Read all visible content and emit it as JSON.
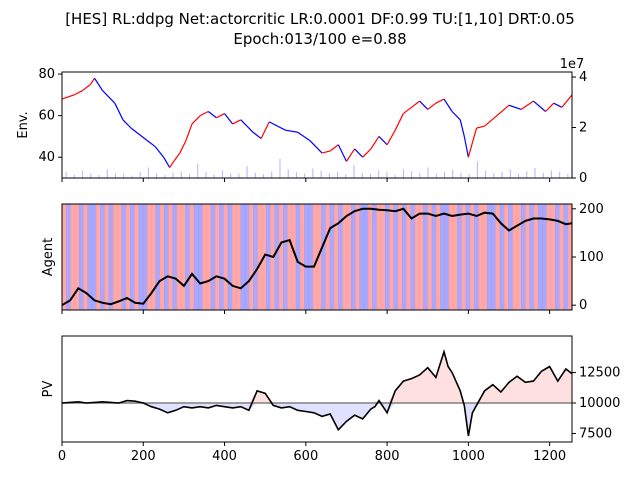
{
  "title_line1": "[HES] RL:ddpg Net:actorcritic LR:0.0001 DF:0.99 TU:[1,10] DRT:0.05",
  "title_line2": "Epoch:013/100 e=0.88",
  "colors": {
    "up": "#ff0000",
    "down": "#0000ff",
    "volume": "#8080ff",
    "agent_line": "#000000",
    "band_long": "#ff9999",
    "band_short": "#9999ff",
    "pv_line": "#000000",
    "baseline": "#808080",
    "pv_gain_fill": "#ffe0e0",
    "pv_loss_fill": "#e0e0ff"
  },
  "chart_data": [
    {
      "panel": "env",
      "type": "line",
      "ylabel": "Env.",
      "ylim": [
        30,
        81
      ],
      "yticks": [
        "40",
        "60",
        "80"
      ],
      "y2lim": [
        0,
        42000000
      ],
      "y2ticks": [
        "0",
        "2",
        "4"
      ],
      "y2_offset": "1e7",
      "series": [
        {
          "kind": "price",
          "x": [
            0,
            30,
            50,
            70,
            80,
            100,
            130,
            150,
            170,
            190,
            210,
            230,
            250,
            265,
            275,
            290,
            305,
            320,
            340,
            360,
            380,
            400,
            420,
            440,
            470,
            490,
            510,
            530,
            550,
            580,
            610,
            640,
            660,
            680,
            700,
            720,
            740,
            760,
            780,
            800,
            820,
            840,
            860,
            880,
            900,
            920,
            940,
            960,
            980,
            990,
            1000,
            1020,
            1040,
            1070,
            1100,
            1130,
            1160,
            1190,
            1210,
            1230,
            1255
          ],
          "values": [
            68,
            70,
            72,
            75,
            78,
            72,
            66,
            58,
            54,
            51,
            48,
            45,
            40,
            35,
            38,
            42,
            48,
            56,
            60,
            62,
            59,
            61,
            56,
            58,
            52,
            49,
            57,
            55,
            53,
            52,
            48,
            42,
            43,
            46,
            38,
            44,
            40,
            44,
            50,
            46,
            53,
            61,
            64,
            67,
            63,
            66,
            68,
            62,
            58,
            50,
            40,
            54,
            55,
            60,
            65,
            63,
            67,
            62,
            66,
            64,
            70
          ]
        },
        {
          "kind": "volume",
          "values": [
            12,
            7,
            15,
            9,
            6,
            18,
            10,
            8,
            5,
            13,
            22,
            9,
            6,
            11,
            14,
            8,
            30,
            12,
            7,
            16,
            10,
            9,
            25,
            11,
            8,
            14,
            40,
            18,
            12,
            9,
            20,
            15,
            10,
            13,
            8,
            27,
            11,
            9,
            16,
            12,
            7,
            19,
            14,
            10,
            22,
            9,
            13,
            17,
            11,
            8,
            35,
            15,
            10,
            12,
            18,
            9,
            14,
            21,
            11,
            16,
            13,
            9
          ]
        }
      ]
    },
    {
      "panel": "agent",
      "type": "line",
      "ylabel": "Agent",
      "ylim": [
        -10,
        210
      ],
      "yticks": [
        "0",
        "100",
        "200"
      ],
      "series": [
        {
          "kind": "position",
          "x": [
            0,
            20,
            40,
            60,
            80,
            100,
            120,
            140,
            160,
            180,
            200,
            220,
            240,
            260,
            280,
            300,
            320,
            340,
            360,
            380,
            400,
            420,
            440,
            460,
            480,
            500,
            520,
            540,
            560,
            580,
            600,
            620,
            640,
            660,
            680,
            700,
            720,
            740,
            760,
            780,
            800,
            820,
            840,
            860,
            880,
            900,
            920,
            940,
            960,
            980,
            1000,
            1020,
            1040,
            1060,
            1080,
            1100,
            1120,
            1140,
            1160,
            1180,
            1200,
            1220,
            1240,
            1255
          ],
          "values": [
            0,
            10,
            35,
            25,
            10,
            5,
            2,
            8,
            15,
            5,
            3,
            25,
            50,
            60,
            55,
            40,
            65,
            45,
            50,
            60,
            55,
            40,
            35,
            50,
            75,
            105,
            100,
            130,
            135,
            90,
            80,
            80,
            120,
            160,
            170,
            185,
            195,
            200,
            200,
            198,
            197,
            195,
            200,
            180,
            190,
            190,
            185,
            190,
            185,
            188,
            190,
            185,
            192,
            190,
            170,
            155,
            165,
            175,
            180,
            180,
            178,
            175,
            168,
            170
          ]
        },
        {
          "kind": "action_bands",
          "values": [
            1,
            0,
            1,
            1,
            0,
            1,
            0,
            0,
            1,
            0,
            1,
            0,
            1,
            1,
            0,
            1,
            0,
            1,
            0,
            0,
            1,
            1,
            0,
            1,
            0,
            1,
            0,
            1,
            1,
            0,
            1,
            0,
            0,
            1,
            1,
            0,
            1,
            0,
            1,
            0,
            1,
            1,
            0,
            0,
            1,
            0,
            1,
            1,
            0,
            1,
            0,
            1,
            0,
            1,
            1,
            0,
            1,
            0,
            0,
            1,
            1,
            0,
            1,
            0,
            1,
            0,
            1,
            1,
            0,
            1,
            0,
            0,
            1,
            0,
            1,
            1,
            0,
            1,
            0,
            1,
            0,
            1,
            0,
            1,
            1,
            0,
            1,
            0,
            1,
            0,
            0,
            1,
            1,
            0,
            1,
            0,
            1,
            0,
            1,
            1,
            0,
            0,
            1,
            0,
            1,
            0,
            1,
            1,
            0,
            1,
            0,
            1,
            0,
            0,
            1,
            1,
            0,
            1,
            0,
            1
          ]
        }
      ]
    },
    {
      "panel": "pv",
      "type": "area",
      "ylabel": "PV",
      "ylim": [
        6800,
        15500
      ],
      "yticks": [
        "7500",
        "10000",
        "12500"
      ],
      "baseline": 10000,
      "xlim": [
        0,
        1255
      ],
      "xticks": [
        "0",
        "200",
        "400",
        "600",
        "800",
        "1000",
        "1200"
      ],
      "series": [
        {
          "kind": "portfolio",
          "x": [
            0,
            20,
            40,
            60,
            80,
            100,
            120,
            140,
            160,
            180,
            200,
            220,
            240,
            260,
            280,
            300,
            320,
            340,
            360,
            380,
            400,
            420,
            440,
            460,
            480,
            500,
            520,
            540,
            560,
            580,
            600,
            620,
            640,
            660,
            680,
            700,
            720,
            740,
            760,
            770,
            780,
            800,
            820,
            840,
            860,
            880,
            900,
            920,
            940,
            950,
            960,
            980,
            990,
            1000,
            1010,
            1020,
            1040,
            1060,
            1080,
            1100,
            1120,
            1140,
            1160,
            1180,
            1200,
            1210,
            1220,
            1240,
            1255
          ],
          "values": [
            10000,
            10050,
            10100,
            10000,
            10050,
            10100,
            10050,
            10000,
            10200,
            10150,
            10000,
            9700,
            9500,
            9200,
            9400,
            9700,
            9600,
            9700,
            9600,
            9800,
            9700,
            9600,
            9700,
            9400,
            11000,
            10800,
            9800,
            9600,
            9700,
            9400,
            9300,
            9200,
            8900,
            9100,
            7800,
            8500,
            9000,
            8700,
            9500,
            9700,
            10200,
            9200,
            11000,
            11800,
            12000,
            12300,
            12900,
            12100,
            14200,
            13000,
            12500,
            11000,
            9800,
            7300,
            9200,
            9800,
            11000,
            11500,
            10900,
            11700,
            12200,
            11700,
            11800,
            12600,
            13000,
            12400,
            11800,
            12800,
            12400
          ]
        }
      ]
    }
  ]
}
